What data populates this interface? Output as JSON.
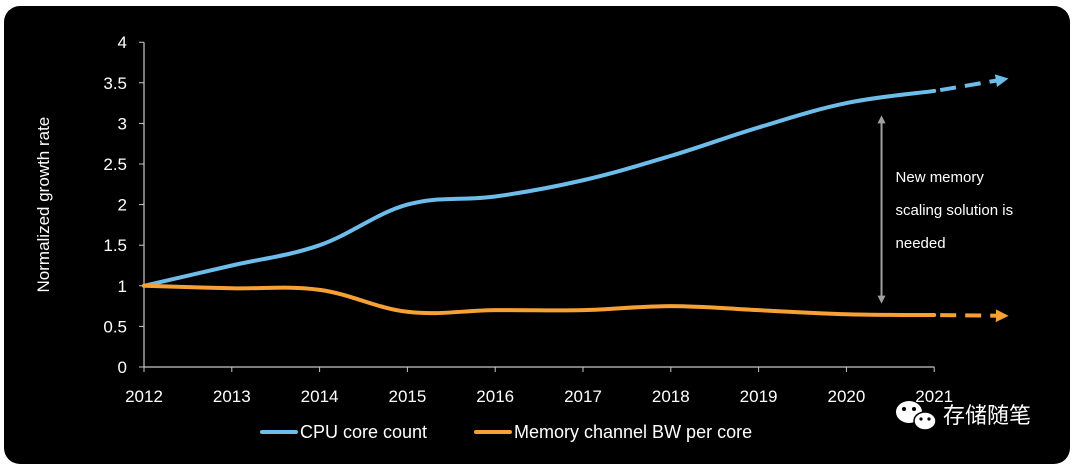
{
  "chart_data": {
    "type": "line",
    "title": "",
    "xlabel": "",
    "ylabel": "Normalized growth rate",
    "categories": [
      "2012",
      "2013",
      "2014",
      "2015",
      "2016",
      "2017",
      "2018",
      "2019",
      "2020",
      "2021"
    ],
    "ylim": [
      0,
      4
    ],
    "yticks": [
      "0",
      "0.5",
      "1",
      "1.5",
      "2",
      "2.5",
      "3",
      "3.5",
      "4"
    ],
    "grid": false,
    "legend": "bottom",
    "series": [
      {
        "name": "CPU core count",
        "color": "#6ebcea",
        "values": [
          1.0,
          1.25,
          1.5,
          2.0,
          2.1,
          2.3,
          2.6,
          2.95,
          3.25,
          3.4
        ],
        "extension": "dashed-arrow"
      },
      {
        "name": "Memory channel BW per core",
        "color": "#f7a135",
        "values": [
          1.0,
          0.97,
          0.95,
          0.68,
          0.7,
          0.7,
          0.75,
          0.7,
          0.65,
          0.64
        ],
        "extension": "dashed-arrow"
      }
    ],
    "annotation": {
      "lines": [
        "New memory",
        "scaling solution is",
        "needed"
      ],
      "arrow": "double-headed",
      "arrow_color": "#a0a0a0"
    }
  },
  "watermark": {
    "text": "存储随笔",
    "icon": "wechat-icon"
  }
}
